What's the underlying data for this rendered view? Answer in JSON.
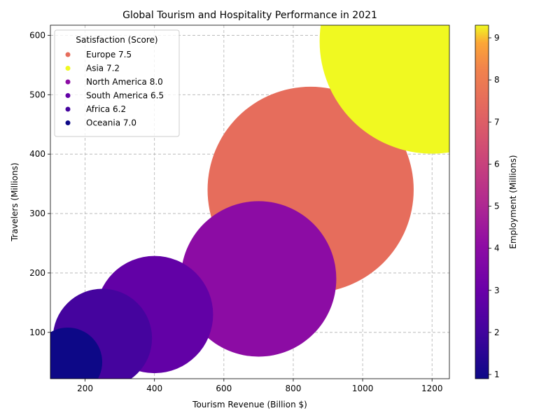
{
  "chart_data": {
    "type": "scatter",
    "title": "Global Tourism and Hospitality Performance in 2021",
    "xlabel": "Tourism Revenue (Billion $)",
    "ylabel": "Travelers (Millions)",
    "xlim": [
      100,
      1250
    ],
    "ylim": [
      22,
      617
    ],
    "xticks": [
      200,
      400,
      600,
      800,
      1000,
      1200
    ],
    "yticks": [
      100,
      200,
      300,
      400,
      500,
      600
    ],
    "grid": true,
    "legend": {
      "title": "Satisfaction (Score)",
      "placement": "upper-left"
    },
    "colorbar": {
      "label": "Employment (Millions)",
      "range": [
        0.9,
        9.3
      ],
      "ticks": [
        1,
        2,
        3,
        4,
        5,
        6,
        7,
        8,
        9
      ],
      "colormap": "plasma"
    },
    "points": [
      {
        "region": "Europe",
        "label": "Europe 7.5",
        "revenue": 850,
        "travelers": 340,
        "satisfaction": 7.5,
        "employment": 7.5
      },
      {
        "region": "Asia",
        "label": "Asia 7.2",
        "revenue": 1200,
        "travelers": 590,
        "satisfaction": 7.2,
        "employment": 9.3
      },
      {
        "region": "North America",
        "label": "North America 8.0",
        "revenue": 700,
        "travelers": 190,
        "satisfaction": 8.0,
        "employment": 4.0
      },
      {
        "region": "South America",
        "label": "South America 6.5",
        "revenue": 400,
        "travelers": 130,
        "satisfaction": 6.5,
        "employment": 2.8
      },
      {
        "region": "Africa",
        "label": "Africa 6.2",
        "revenue": 250,
        "travelers": 90,
        "satisfaction": 6.2,
        "employment": 2.1
      },
      {
        "region": "Oceania",
        "label": "Oceania 7.0",
        "revenue": 150,
        "travelers": 50,
        "satisfaction": 7.0,
        "employment": 0.9
      }
    ]
  }
}
